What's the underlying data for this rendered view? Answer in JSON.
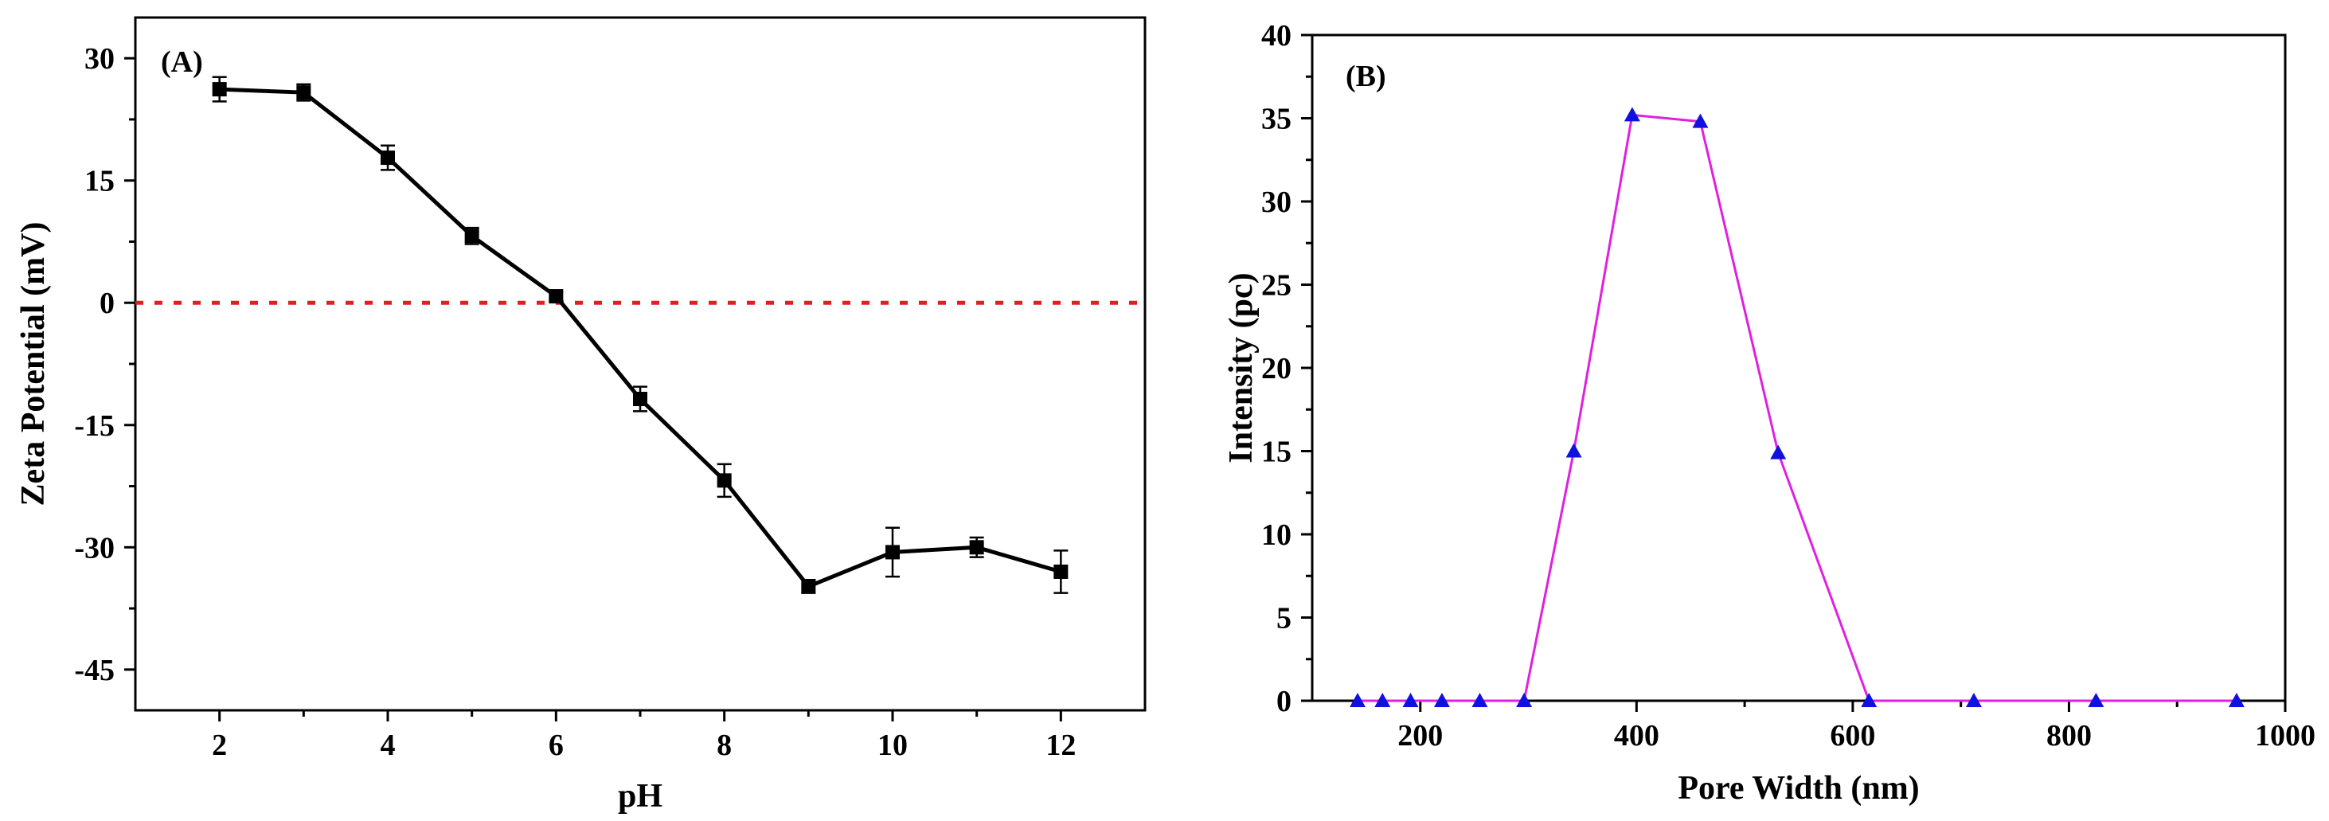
{
  "chart_data": [
    {
      "panel_label": "(A)",
      "type": "line",
      "xlabel": "pH",
      "ylabel": "Zeta Potential (mV)",
      "xlim": [
        1,
        13
      ],
      "ylim": [
        -50,
        35
      ],
      "x_ticks": [
        2,
        4,
        6,
        8,
        10,
        12
      ],
      "x_tick_labels": [
        "2",
        "4",
        "6",
        "8",
        "10",
        "12"
      ],
      "y_ticks": [
        30,
        15,
        0,
        -15,
        -30,
        -45
      ],
      "y_tick_labels": [
        "30",
        "15",
        "0",
        "-15",
        "-30",
        "-45"
      ],
      "reference_line": {
        "y": 0,
        "color": "#e02020",
        "style": "dotted"
      },
      "series": [
        {
          "name": "Zeta Potential",
          "color": "#000000",
          "marker": "square",
          "x": [
            2,
            3,
            4,
            5,
            6,
            7,
            8,
            9,
            10,
            11,
            12
          ],
          "y": [
            26.2,
            25.8,
            17.8,
            8.2,
            0.8,
            -11.8,
            -21.8,
            -34.8,
            -30.6,
            -30.0,
            -33.0
          ],
          "error": [
            1.5,
            1.0,
            1.5,
            1.0,
            0.5,
            1.5,
            2.0,
            0.8,
            3.0,
            1.2,
            2.6
          ]
        }
      ]
    },
    {
      "panel_label": "(B)",
      "type": "line",
      "xlabel": "Pore Width (nm)",
      "ylabel": "Intensity (pc)",
      "xlim": [
        100,
        1000
      ],
      "ylim": [
        0,
        40
      ],
      "x_ticks": [
        200,
        400,
        600,
        800,
        1000
      ],
      "x_tick_labels": [
        "200",
        "400",
        "600",
        "800",
        "1000"
      ],
      "y_ticks": [
        0,
        5,
        10,
        15,
        20,
        25,
        30,
        35,
        40
      ],
      "y_tick_labels": [
        "0",
        "5",
        "10",
        "15",
        "20",
        "25",
        "30",
        "35",
        "40"
      ],
      "series": [
        {
          "name": "Intensity",
          "color": "#e020e0",
          "marker_color": "#1010e0",
          "marker": "triangle",
          "x": [
            142,
            165,
            191,
            220,
            255,
            296,
            342,
            396,
            459,
            531,
            615,
            712,
            825,
            955
          ],
          "y": [
            0,
            0,
            0,
            0,
            0,
            0,
            15.0,
            35.2,
            34.8,
            14.9,
            0,
            0,
            0,
            0
          ]
        }
      ]
    }
  ]
}
